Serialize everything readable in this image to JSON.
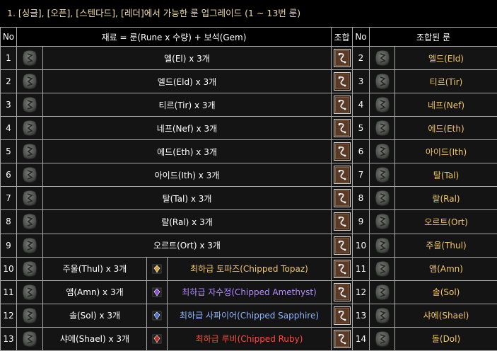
{
  "title": "1. [싱글], [오픈], [스텐다드], [레더]에서 가능한 룬 업그레이드 (1 ~ 13번 룬)",
  "headers": {
    "no": "No",
    "materials": "재료 = 룬(Rune x 수량) + 보석(Gem)",
    "combine": "조합",
    "no2": "No",
    "result": "조합된 룬"
  },
  "rows": [
    {
      "no": "1",
      "material": "엘(El) x 3개",
      "gem": "",
      "gem_color": "",
      "rno": "2",
      "result": "엘드(Eld)"
    },
    {
      "no": "2",
      "material": "엘드(Eld) x 3개",
      "gem": "",
      "gem_color": "",
      "rno": "3",
      "result": "티르(Tir)"
    },
    {
      "no": "3",
      "material": "티르(Tir) x 3개",
      "gem": "",
      "gem_color": "",
      "rno": "4",
      "result": "네프(Nef)"
    },
    {
      "no": "4",
      "material": "네프(Nef) x 3개",
      "gem": "",
      "gem_color": "",
      "rno": "5",
      "result": "에드(Eth)"
    },
    {
      "no": "5",
      "material": "에드(Eth) x 3개",
      "gem": "",
      "gem_color": "",
      "rno": "6",
      "result": "아이드(Ith)"
    },
    {
      "no": "6",
      "material": "아이드(Ith) x 3개",
      "gem": "",
      "gem_color": "",
      "rno": "7",
      "result": "탈(Tal)"
    },
    {
      "no": "7",
      "material": "탈(Tal) x 3개",
      "gem": "",
      "gem_color": "",
      "rno": "8",
      "result": "랄(Ral)"
    },
    {
      "no": "8",
      "material": "랄(Ral) x 3개",
      "gem": "",
      "gem_color": "",
      "rno": "9",
      "result": "오르트(Ort)"
    },
    {
      "no": "9",
      "material": "오르트(Ort) x 3개",
      "gem": "",
      "gem_color": "",
      "rno": "10",
      "result": "주울(Thul)"
    },
    {
      "no": "10",
      "material": "주울(Thul) x 3개",
      "gem": "최하급 토파즈(Chipped Topaz)",
      "gem_color": "#f2c76b",
      "gem_icon_color": "#d4a63a",
      "rno": "11",
      "result": "앰(Amn)"
    },
    {
      "no": "11",
      "material": "앰(Amn) x 3개",
      "gem": "최하급 자수정(Chipped Amethyst)",
      "gem_color": "#b38cff",
      "gem_icon_color": "#8a4bd8",
      "rno": "12",
      "result": "솔(Sol)"
    },
    {
      "no": "12",
      "material": "솔(Sol) x 3개",
      "gem": "최하급 사파이어(Chipped Sapphire)",
      "gem_color": "#8fb4ff",
      "gem_icon_color": "#4a6fd0",
      "rno": "13",
      "result": "샤에(Shael)"
    },
    {
      "no": "13",
      "material": "샤에(Shael) x 3개",
      "gem": "최하급 루비(Chipped Ruby)",
      "gem_color": "#ff4a3a",
      "gem_icon_color": "#c22a1c",
      "rno": "14",
      "result": "돌(Dol)"
    }
  ]
}
